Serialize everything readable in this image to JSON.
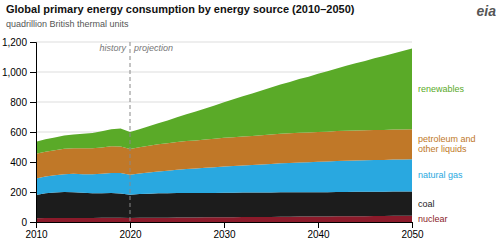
{
  "chart_data": {
    "type": "area",
    "stacked": true,
    "title": "Global primary energy consumption by energy source (2010–2050)",
    "subtitle": "quadrillion British thermal units",
    "x": [
      2010,
      2011,
      2012,
      2013,
      2014,
      2015,
      2016,
      2017,
      2018,
      2019,
      2020,
      2021,
      2022,
      2023,
      2024,
      2025,
      2026,
      2027,
      2028,
      2029,
      2030,
      2031,
      2032,
      2033,
      2034,
      2035,
      2036,
      2037,
      2038,
      2039,
      2040,
      2041,
      2042,
      2043,
      2044,
      2045,
      2046,
      2047,
      2048,
      2049,
      2050
    ],
    "series": [
      {
        "name": "nuclear",
        "color": "#8b1a2a",
        "values": [
          25,
          26,
          26,
          27,
          27,
          27,
          27,
          28,
          28,
          28,
          27,
          28,
          28,
          29,
          29,
          30,
          30,
          30,
          31,
          31,
          32,
          32,
          33,
          33,
          34,
          34,
          35,
          35,
          36,
          36,
          37,
          37,
          38,
          38,
          39,
          39,
          40,
          40,
          41,
          41,
          42
        ]
      },
      {
        "name": "coal",
        "color": "#1c1c1c",
        "values": [
          155,
          165,
          170,
          173,
          172,
          168,
          165,
          163,
          165,
          162,
          155,
          158,
          160,
          162,
          163,
          163,
          163,
          163,
          163,
          163,
          163,
          163,
          163,
          163,
          163,
          163,
          163,
          163,
          163,
          162,
          162,
          162,
          162,
          162,
          162,
          162,
          162,
          162,
          162,
          162,
          162
        ]
      },
      {
        "name": "natural gas",
        "color": "#29a8e0",
        "values": [
          110,
          112,
          116,
          119,
          122,
          124,
          126,
          130,
          134,
          136,
          133,
          138,
          142,
          146,
          150,
          155,
          160,
          163,
          167,
          171,
          175,
          178,
          181,
          184,
          187,
          190,
          193,
          196,
          198,
          200,
          202,
          204,
          206,
          208,
          209,
          210,
          211,
          212,
          213,
          214,
          215
        ]
      },
      {
        "name": "petroleum and\nother liquids",
        "color": "#c07828",
        "values": [
          165,
          166,
          167,
          169,
          170,
          172,
          173,
          176,
          178,
          178,
          172,
          175,
          178,
          181,
          183,
          185,
          187,
          188,
          189,
          190,
          191,
          192,
          193,
          194,
          195,
          196,
          197,
          197,
          198,
          198,
          199,
          199,
          200,
          200,
          200,
          200,
          200,
          200,
          200,
          200,
          200
        ]
      },
      {
        "name": "renewables",
        "color": "#5aaa28",
        "values": [
          80,
          82,
          85,
          88,
          92,
          97,
          103,
          108,
          114,
          120,
          113,
          120,
          130,
          140,
          152,
          165,
          178,
          192,
          207,
          222,
          238,
          253,
          268,
          283,
          298,
          313,
          328,
          343,
          358,
          373,
          388,
          403,
          418,
          433,
          448,
          463,
          478,
          493,
          508,
          523,
          538
        ]
      }
    ],
    "xlim": [
      2010,
      2050
    ],
    "xticks": [
      2010,
      2020,
      2030,
      2040,
      2050
    ],
    "ylim": [
      0,
      1200
    ],
    "yticks": [
      0,
      200,
      400,
      600,
      800,
      {
        "value": 1000,
        "label": "1,000"
      },
      {
        "value": 1200,
        "label": "1,200"
      }
    ],
    "grid": true,
    "annotations": [
      {
        "type": "vline",
        "x": 2020,
        "line_style": "dashed"
      },
      {
        "text": "history",
        "x": 2020,
        "align": "right"
      },
      {
        "text": "projection",
        "x": 2020,
        "align": "left"
      },
      {
        "text": "eia"
      }
    ]
  }
}
